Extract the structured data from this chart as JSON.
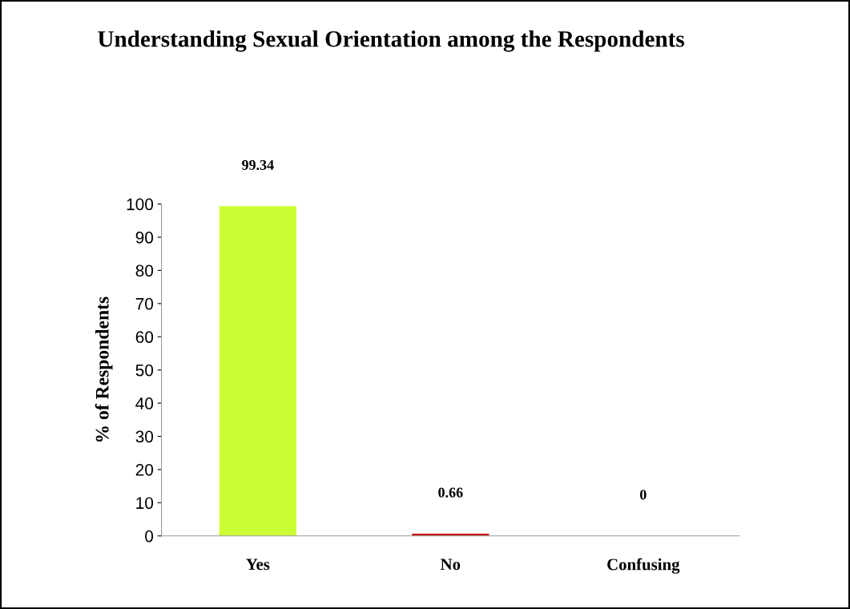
{
  "chart_data": {
    "type": "bar",
    "title": "Understanding Sexual Orientation among the Respondents",
    "ylabel": "% of Respondents",
    "categories": [
      "Yes",
      "No",
      "Confusing"
    ],
    "values": [
      99.34,
      0.66,
      0
    ],
    "colors": [
      "#ccff33",
      "#cc0000",
      "#0000cc"
    ],
    "ylim": [
      0,
      100
    ],
    "yticks": [
      0,
      10,
      20,
      30,
      40,
      50,
      60,
      70,
      80,
      90,
      100
    ],
    "data_labels": true,
    "grid": false,
    "legend": false
  }
}
